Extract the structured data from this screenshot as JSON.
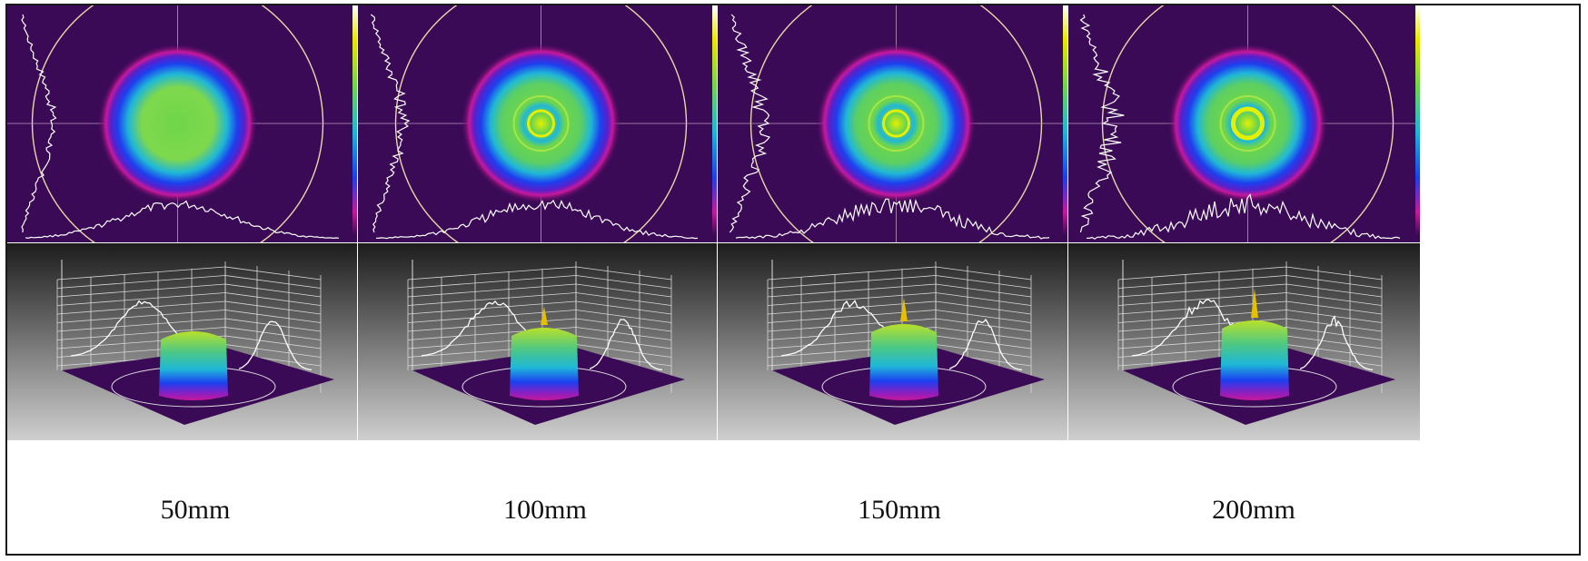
{
  "figure": {
    "captions": [
      "50mm",
      "100mm",
      "150mm",
      "200mm"
    ],
    "colors": {
      "background_2d": "#3b0a57",
      "ring_outer": "#c8189c",
      "ring_blue": "#1c3ff0",
      "ring_cyan": "#1fb7d8",
      "center_green": "#6fd64a",
      "center_yellow": "#e4f000",
      "profile_line": "#ffffff",
      "bg_3d_top": "#1c1c1c",
      "bg_3d_bottom": "#cfcfcf"
    },
    "panels": [
      {
        "distance": "50mm",
        "center_type": "flat",
        "spikiness": 0.35
      },
      {
        "distance": "100mm",
        "center_type": "ring",
        "spikiness": 0.55
      },
      {
        "distance": "150mm",
        "center_type": "ring",
        "spikiness": 0.75
      },
      {
        "distance": "200mm",
        "center_type": "donut",
        "spikiness": 0.95
      }
    ]
  }
}
